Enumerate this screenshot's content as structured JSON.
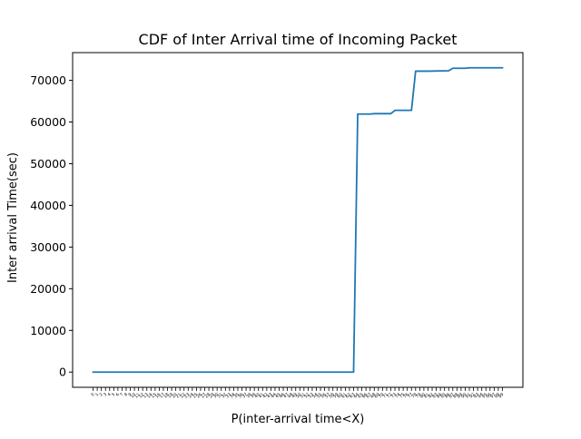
{
  "chart_data": {
    "type": "line",
    "title": "CDF of Inter Arrival time of Incoming Packet",
    "xlabel": "P(inter-arrival time<X)",
    "ylabel": "Inter arrival Time(sec)",
    "x_tick_count": 100,
    "ylim": [
      -3650,
      76650
    ],
    "xlim": [
      -4.95,
      103.95
    ],
    "yticks": [
      0,
      10000,
      20000,
      30000,
      40000,
      50000,
      60000,
      70000
    ],
    "grid": false,
    "legend": "none",
    "line_color": "#1f77b4",
    "series": [
      {
        "x": [
          0,
          63,
          64,
          65,
          67,
          68,
          70,
          72,
          73,
          74,
          75,
          77,
          78,
          79,
          80,
          81,
          86,
          87,
          88,
          89,
          90,
          91,
          92,
          99
        ],
        "y": [
          0,
          0,
          61900,
          61900,
          61900,
          62000,
          62000,
          62000,
          62800,
          62800,
          62800,
          62800,
          72200,
          72200,
          72200,
          72200,
          72300,
          72900,
          72900,
          72900,
          72900,
          73000,
          73000,
          73000
        ]
      }
    ]
  }
}
